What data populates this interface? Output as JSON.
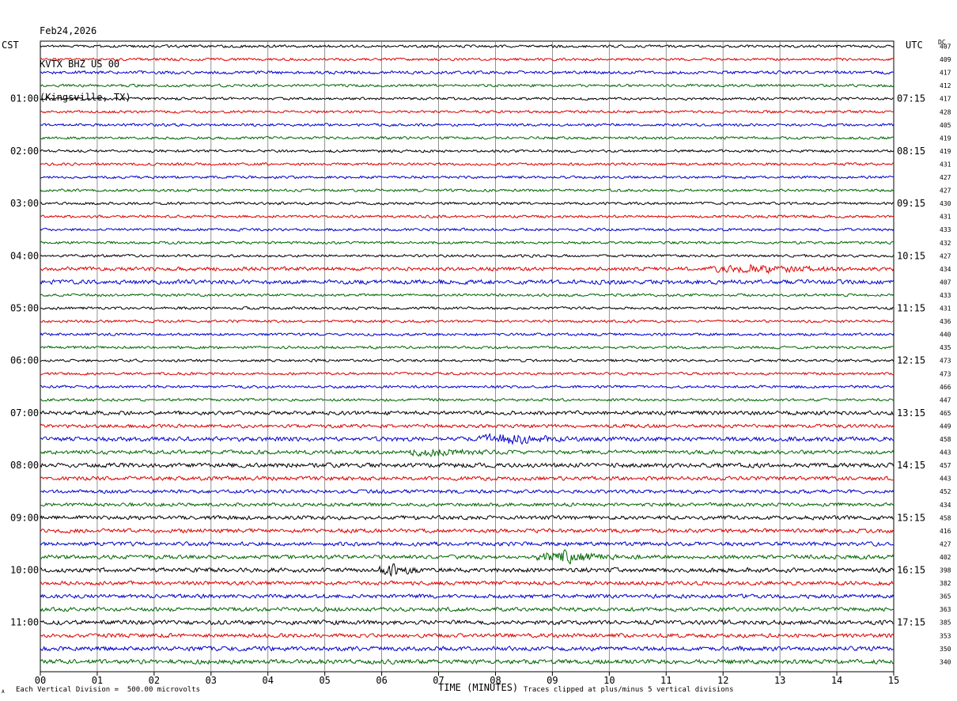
{
  "header": {
    "date": "Feb24,2026",
    "station": "KVTX BHZ US 00",
    "location": "(Kingsville, TX)"
  },
  "axis": {
    "left_tz": "CST",
    "right_tz": "UTC",
    "dc_label": "DC",
    "xlabel": "TIME (MINUTES)"
  },
  "footer": {
    "scale_note": "Each Vertical Division =  500.00 microvolts",
    "clip_note": "Traces clipped at plus/minus 5 vertical divisions",
    "corner_mark": "A"
  },
  "colors": {
    "cycle": [
      "#000000",
      "#dd0000",
      "#0000cc",
      "#006600"
    ]
  },
  "chart_data": {
    "type": "line",
    "subtype": "helicorder",
    "title": "KVTX BHZ US 00",
    "xlabel": "TIME (MINUTES)",
    "xlim": [
      0,
      15
    ],
    "x_ticks": [
      "00",
      "01",
      "02",
      "03",
      "04",
      "05",
      "06",
      "07",
      "08",
      "09",
      "10",
      "11",
      "12",
      "13",
      "14",
      "15"
    ],
    "minutes_per_line": 15,
    "line_count": 48,
    "left_hour_labels": [
      "01:00",
      "02:00",
      "03:00",
      "04:00",
      "05:00",
      "06:00",
      "07:00",
      "08:00",
      "09:00",
      "10:00",
      "11:00"
    ],
    "right_hour_labels": [
      "07:15",
      "08:15",
      "09:15",
      "10:15",
      "11:15",
      "12:15",
      "13:15",
      "14:15",
      "15:15",
      "16:15",
      "17:15"
    ],
    "hour_label_every_lines": 4,
    "hour_label_first_line": 4,
    "dc_offsets": [
      407,
      409,
      417,
      412,
      417,
      428,
      405,
      419,
      419,
      431,
      427,
      427,
      430,
      431,
      433,
      432,
      427,
      434,
      407,
      433,
      431,
      436,
      440,
      435,
      473,
      473,
      466,
      447,
      465,
      449,
      458,
      443,
      457,
      443,
      452,
      434,
      458,
      416,
      427,
      402,
      398,
      382,
      365,
      363,
      385,
      353,
      350,
      340
    ],
    "amplitude_rel": [
      0.6,
      0.6,
      0.7,
      0.6,
      0.6,
      0.6,
      0.6,
      0.6,
      0.6,
      0.6,
      0.6,
      0.6,
      0.6,
      0.6,
      0.6,
      0.6,
      0.6,
      0.9,
      1.0,
      0.6,
      0.6,
      0.6,
      0.6,
      0.6,
      0.6,
      0.6,
      0.6,
      0.6,
      0.9,
      0.8,
      1.0,
      0.9,
      1.0,
      0.9,
      0.8,
      0.8,
      0.9,
      0.9,
      0.9,
      0.9,
      1.0,
      0.9,
      0.9,
      0.9,
      1.0,
      0.9,
      1.0,
      1.0
    ],
    "events": [
      {
        "line": 17,
        "x_minute": 12.5,
        "duration_min": 1.5,
        "amp": 1.8
      },
      {
        "line": 30,
        "x_minute": 8.2,
        "duration_min": 1.0,
        "amp": 2.4
      },
      {
        "line": 31,
        "x_minute": 7.0,
        "duration_min": 1.0,
        "amp": 1.8
      },
      {
        "line": 39,
        "x_minute": 9.2,
        "duration_min": 1.0,
        "amp": 3.0
      },
      {
        "line": 40,
        "x_minute": 6.2,
        "duration_min": 0.5,
        "amp": 2.2
      }
    ],
    "units": "microvolts",
    "vertical_division": 500.0,
    "clip_divisions": 5,
    "grid": true
  }
}
